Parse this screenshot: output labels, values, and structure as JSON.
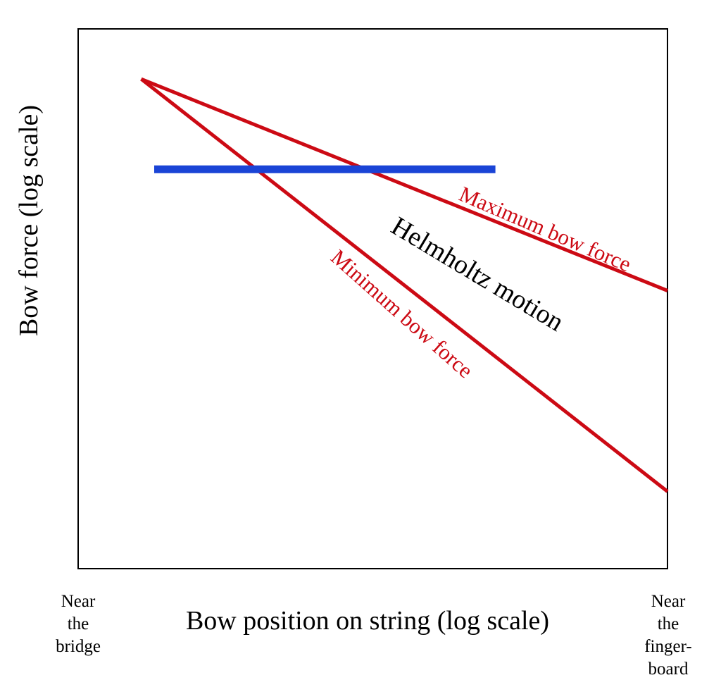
{
  "chart_data": {
    "type": "line",
    "title": "",
    "xlabel": "Bow position on string (log scale)",
    "ylabel": "Bow force (log scale)",
    "x_scale": "log",
    "y_scale": "log",
    "x_end_labels": {
      "left": [
        "Near",
        "the",
        "bridge"
      ],
      "right": [
        "Near",
        "the",
        "finger-",
        "board"
      ]
    },
    "xlim": [
      0,
      10
    ],
    "ylim": [
      0,
      10
    ],
    "grid": false,
    "colors": {
      "limits": "#cc0a14",
      "range": "#1a44d6"
    },
    "series": [
      {
        "name": "Maximum bow force",
        "x": [
          1.07,
          10.0
        ],
        "y": [
          9.07,
          5.15
        ]
      },
      {
        "name": "Minimum bow force",
        "x": [
          1.07,
          10.0
        ],
        "y": [
          9.07,
          1.43
        ]
      },
      {
        "name": "",
        "x": [
          1.29,
          7.08
        ],
        "y": [
          7.4,
          7.4
        ]
      }
    ],
    "annotations": [
      {
        "text": "Helmholtz motion"
      }
    ]
  }
}
